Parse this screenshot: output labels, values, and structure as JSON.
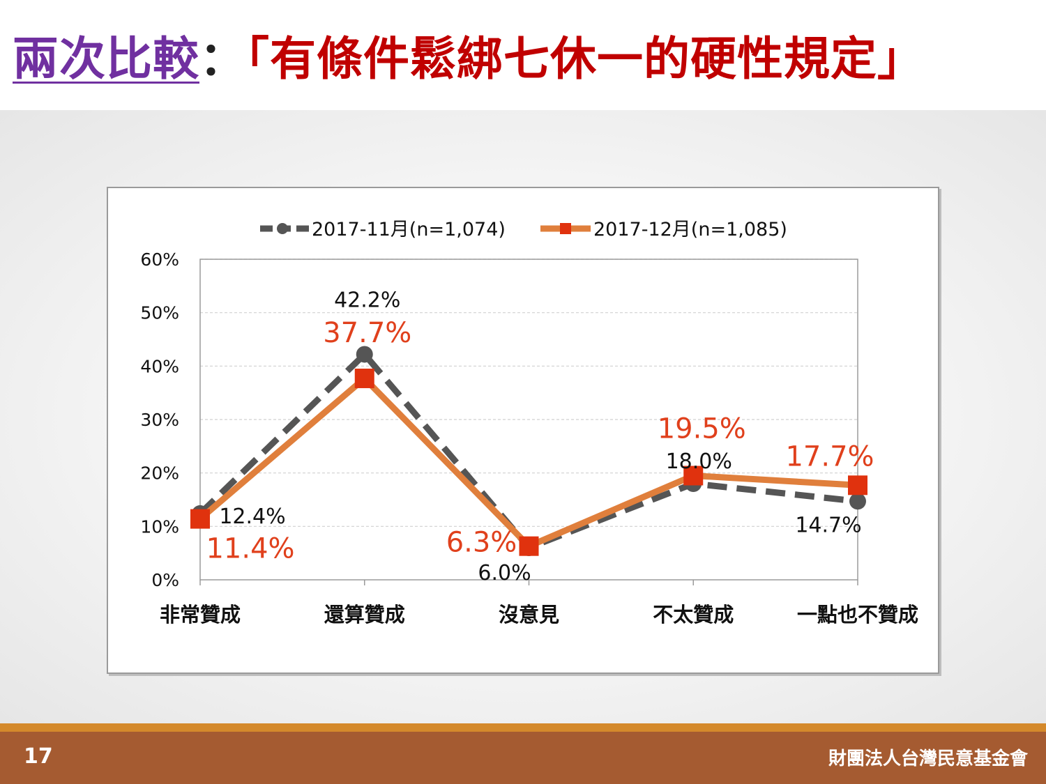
{
  "title": {
    "part1": "兩次比較",
    "separator": "：",
    "part2": "「有條件鬆綁七休一的硬性規定」"
  },
  "footer": {
    "page_number": "17",
    "organization": "財團法人台灣民意基金會"
  },
  "colors": {
    "series1": "#555555",
    "series2_line": "#e07f3c",
    "series2_marker": "#e0320e",
    "series2_label": "#e0401c"
  },
  "chart_data": {
    "type": "line",
    "categories": [
      "非常贊成",
      "還算贊成",
      "沒意見",
      "不太贊成",
      "一點也不贊成"
    ],
    "yticks": [
      "0%",
      "10%",
      "20%",
      "30%",
      "40%",
      "50%",
      "60%"
    ],
    "ylim": [
      0,
      60
    ],
    "grid": true,
    "legend": "top",
    "series": [
      {
        "name": "2017-11月(n=1,074)",
        "values": [
          12.4,
          42.2,
          6.0,
          18.0,
          14.7
        ],
        "labels": [
          "12.4%",
          "42.2%",
          "6.0%",
          "18.0%",
          "14.7%"
        ],
        "style": "dashed",
        "marker": "circle"
      },
      {
        "name": "2017-12月(n=1,085)",
        "values": [
          11.4,
          37.7,
          6.3,
          19.5,
          17.7
        ],
        "labels": [
          "11.4%",
          "37.7%",
          "6.3%",
          "19.5%",
          "17.7%"
        ],
        "style": "solid",
        "marker": "square"
      }
    ]
  }
}
